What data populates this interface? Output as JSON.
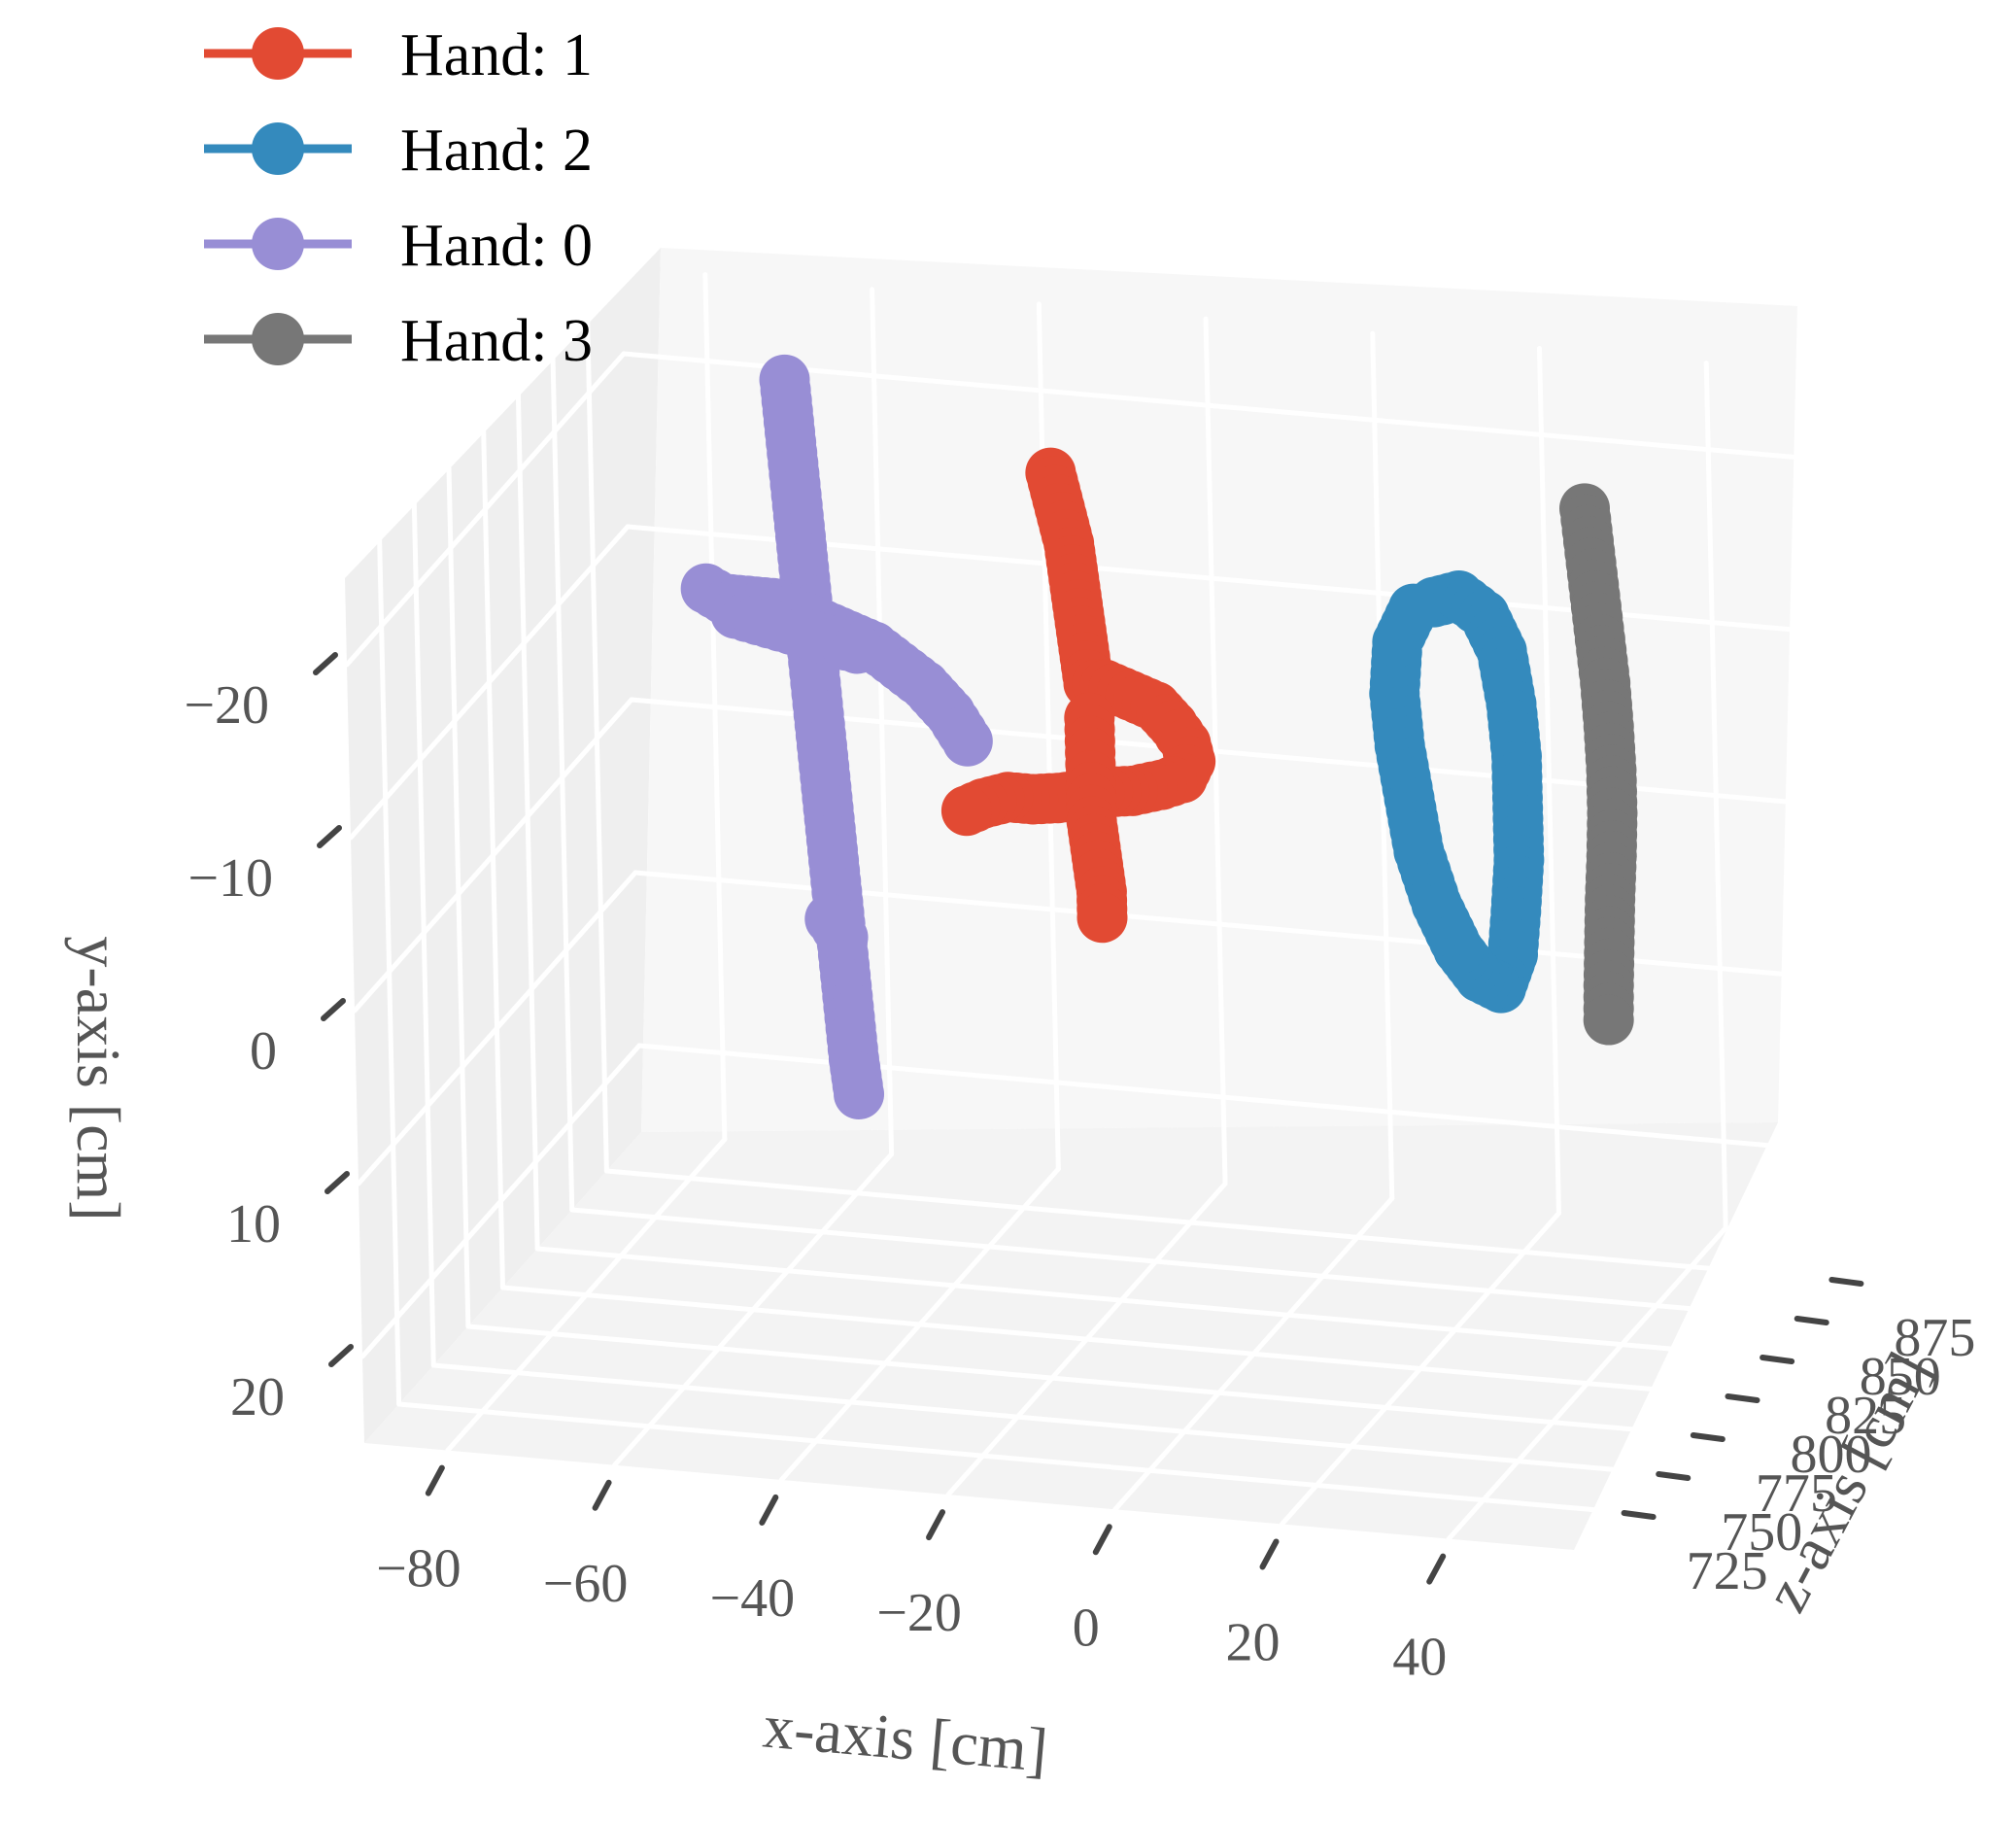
{
  "chart_data": {
    "type": "scatter",
    "projection": "3d",
    "grid": true,
    "legend_position": "top-left",
    "xlabel": "x-axis [cm]",
    "ylabel": "y-axis [cm]",
    "zlabel": "z-axis [cm]",
    "x_ticks": [
      "−80",
      "−60",
      "−40",
      "−20",
      "0",
      "20",
      "40"
    ],
    "y_ticks": [
      "−20",
      "−10",
      "0",
      "10",
      "20"
    ],
    "z_ticks": [
      "725",
      "750",
      "775",
      "800",
      "825",
      "850",
      "875"
    ],
    "x_tick_values": [
      -80,
      -60,
      -40,
      -20,
      0,
      20,
      40
    ],
    "y_tick_values": [
      -20,
      -10,
      0,
      10,
      20
    ],
    "z_tick_values": [
      725,
      750,
      775,
      800,
      825,
      850,
      875
    ],
    "xlim": [
      -90,
      55
    ],
    "ylim": [
      -25,
      25
    ],
    "zlim": [
      700,
      900
    ],
    "series": [
      {
        "name": "Hand: 1",
        "color": "#E24A33",
        "points": [
          [
            -22,
            -25,
            800
          ],
          [
            -21,
            -23,
            800
          ],
          [
            -20,
            -21,
            800
          ],
          [
            -19.5,
            -19,
            800
          ],
          [
            -19,
            -17,
            800
          ],
          [
            -18.5,
            -15,
            800
          ],
          [
            -18,
            -13,
            800
          ],
          [
            -16,
            -13,
            800
          ],
          [
            -13,
            -12.5,
            800
          ],
          [
            -10,
            -12,
            800
          ],
          [
            -8,
            -11,
            800
          ],
          [
            -6.5,
            -10,
            800
          ],
          [
            -6,
            -9,
            800
          ],
          [
            -7,
            -8,
            800
          ],
          [
            -9.5,
            -7.5,
            800
          ],
          [
            -13,
            -7,
            800
          ],
          [
            -16,
            -6.8,
            800
          ],
          [
            -19,
            -6.5,
            800
          ],
          [
            -22,
            -6.2,
            800
          ],
          [
            -25,
            -6,
            800
          ],
          [
            -28,
            -6,
            800
          ],
          [
            -31,
            -5.5,
            800
          ],
          [
            -33,
            -5,
            800
          ],
          [
            -18,
            -11,
            800
          ],
          [
            -18,
            -9,
            800
          ],
          [
            -18,
            -7,
            800
          ],
          [
            -18,
            -5,
            800
          ],
          [
            -17.5,
            -3,
            800
          ],
          [
            -17,
            -1,
            800
          ],
          [
            -17,
            0.5,
            800
          ]
        ]
      },
      {
        "name": "Hand: 2",
        "color": "#348ABD",
        "points": [
          [
            22,
            -18.5,
            810
          ],
          [
            25,
            -19,
            810
          ],
          [
            28,
            -18,
            810
          ],
          [
            30,
            -16,
            810
          ],
          [
            31,
            -13,
            810
          ],
          [
            31.5,
            -10,
            810
          ],
          [
            31.5,
            -7,
            810
          ],
          [
            31.5,
            -4,
            810
          ],
          [
            31,
            -1,
            810
          ],
          [
            30.5,
            1.5,
            810
          ],
          [
            29,
            3.5,
            810
          ],
          [
            26.5,
            3,
            810
          ],
          [
            24,
            1.5,
            810
          ],
          [
            21.5,
            -1,
            810
          ],
          [
            19.5,
            -4,
            810
          ],
          [
            18.5,
            -7,
            810
          ],
          [
            17.5,
            -10,
            810
          ],
          [
            17,
            -13,
            810
          ],
          [
            17.5,
            -16,
            810
          ],
          [
            19.5,
            -18,
            810
          ]
        ]
      },
      {
        "name": "Hand: 0",
        "color": "#988ED5",
        "points": [
          [
            -52,
            -30,
            790
          ],
          [
            -51.5,
            -27,
            790
          ],
          [
            -51,
            -24,
            790
          ],
          [
            -50.5,
            -21,
            790
          ],
          [
            -50,
            -18,
            790
          ],
          [
            -49.5,
            -15,
            790
          ],
          [
            -49,
            -12,
            790
          ],
          [
            -48.5,
            -9,
            790
          ],
          [
            -48,
            -6,
            790
          ],
          [
            -47.5,
            -3,
            790
          ],
          [
            -47,
            0,
            790
          ],
          [
            -46.5,
            3,
            790
          ],
          [
            -46,
            6,
            790
          ],
          [
            -45.5,
            9,
            790
          ],
          [
            -45,
            11,
            790
          ],
          [
            -46.5,
            2,
            790
          ],
          [
            -48,
            1,
            790
          ],
          [
            -62,
            -17.5,
            790
          ],
          [
            -60,
            -17,
            790
          ],
          [
            -57,
            -17,
            790
          ],
          [
            -54,
            -17,
            790
          ],
          [
            -51,
            -16.5,
            790
          ],
          [
            -48,
            -16,
            790
          ],
          [
            -45,
            -15.5,
            790
          ],
          [
            -42,
            -15,
            790
          ],
          [
            -39,
            -14,
            790
          ],
          [
            -36,
            -13,
            790
          ],
          [
            -33,
            -11.5,
            790
          ],
          [
            -31,
            -10,
            790
          ],
          [
            -58.5,
            -16.2,
            790
          ],
          [
            -44,
            -14.8,
            790
          ]
        ]
      },
      {
        "name": "Hand: 3",
        "color": "#777777",
        "points": [
          [
            40,
            -24.5,
            812
          ],
          [
            40.5,
            -22,
            812
          ],
          [
            41,
            -19.5,
            812
          ],
          [
            41.5,
            -17,
            812
          ],
          [
            42,
            -14.5,
            812
          ],
          [
            42.3,
            -12,
            812
          ],
          [
            42.5,
            -9.5,
            812
          ],
          [
            42.5,
            -7,
            812
          ],
          [
            42.3,
            -4.5,
            812
          ],
          [
            42,
            -2,
            812
          ],
          [
            41.8,
            0.5,
            812
          ],
          [
            41.6,
            3,
            812
          ],
          [
            41.5,
            5,
            812
          ]
        ]
      }
    ]
  }
}
